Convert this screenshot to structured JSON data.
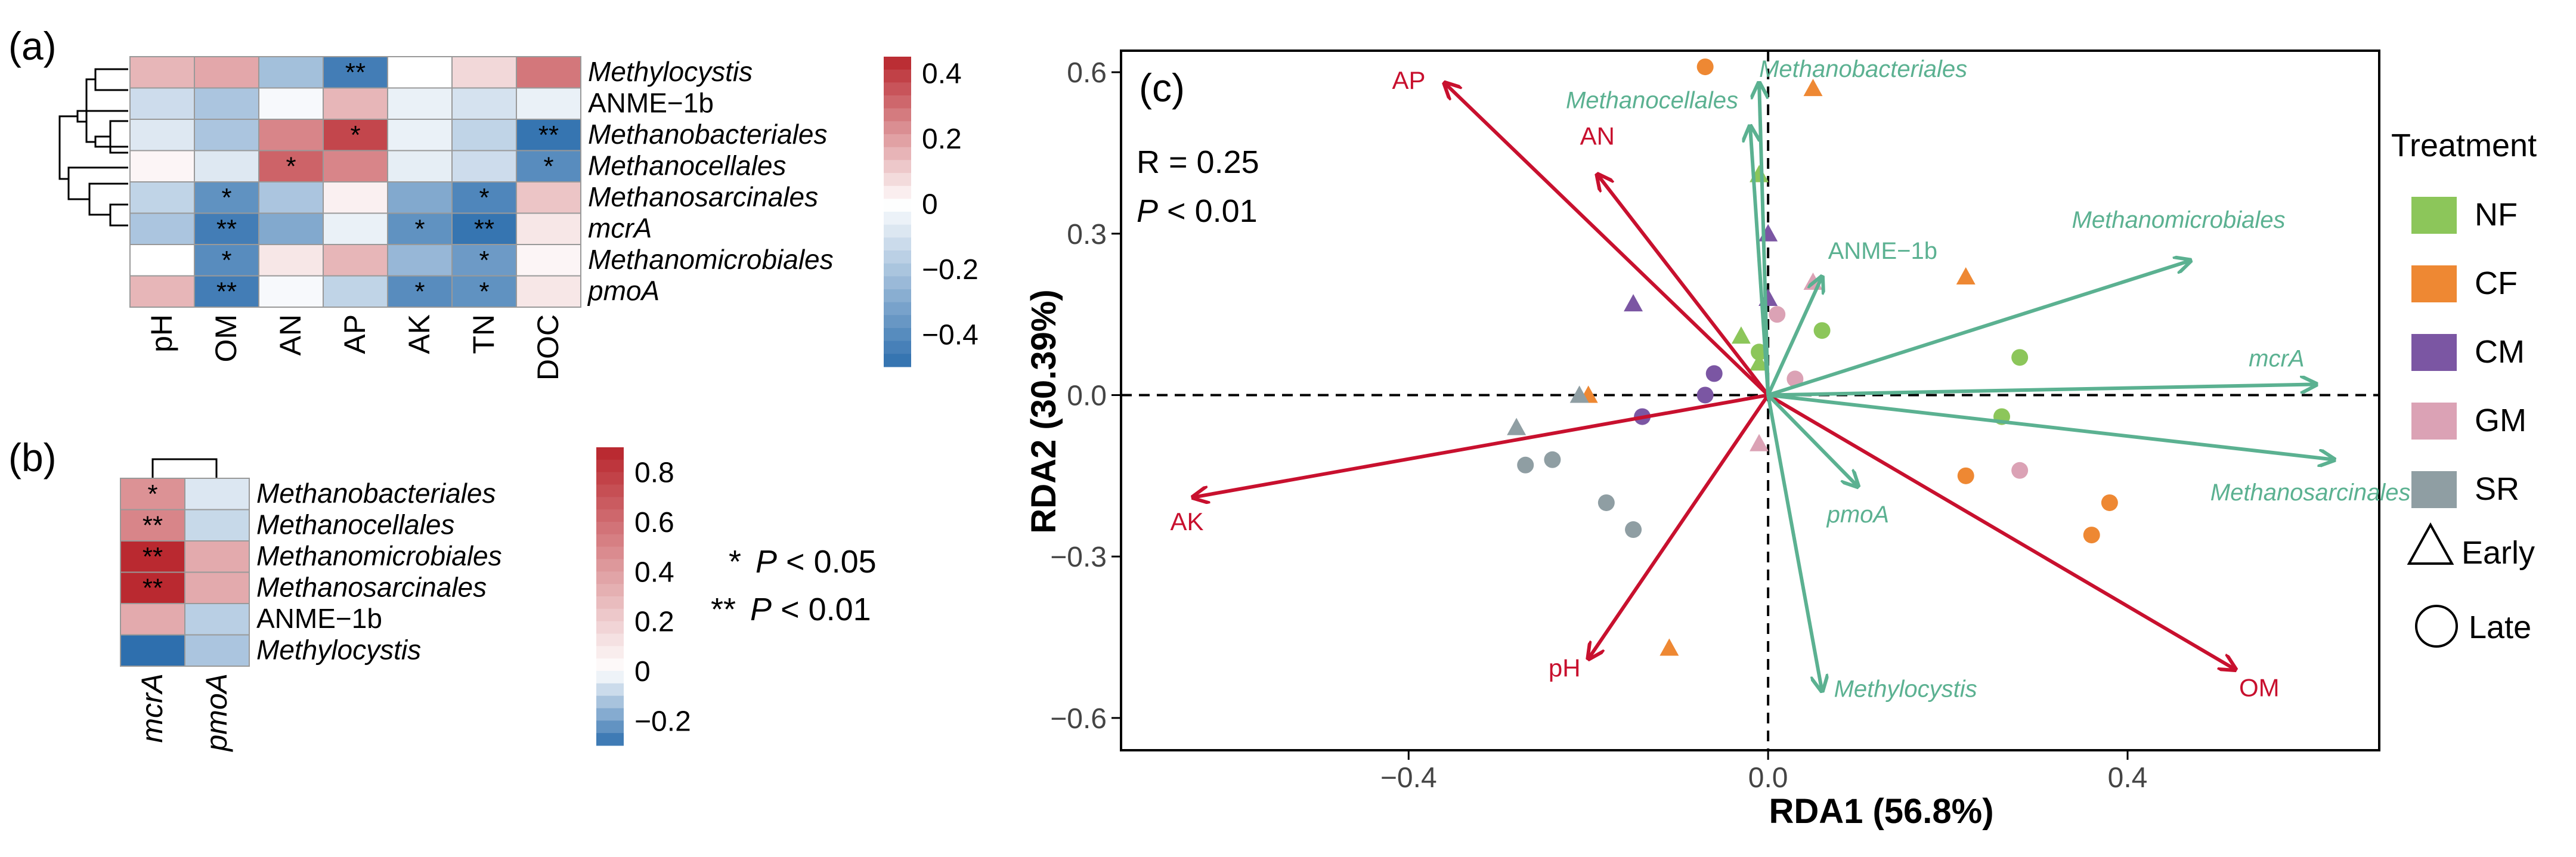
{
  "panels": {
    "a": "(a)",
    "b": "(b)",
    "c": "(c)"
  },
  "colors": {
    "red": "#C8102E",
    "green": "#5BB191",
    "heat_hi": "#B8242B",
    "heat_lo": "#2E6FAE"
  },
  "significance_legend": [
    {
      "mark": "*",
      "p": "P",
      "text": " < 0.05"
    },
    {
      "mark": "**",
      "p": "P",
      "text": " < 0.01"
    }
  ],
  "chart_data": [
    {
      "id": "heatmap_a",
      "type": "heatmap",
      "title": "(a)",
      "rows": [
        "Methylocystis",
        "ANME−1b",
        "Methanobacteriales",
        "Methanocellales",
        "Methanosarcinales",
        "mcrA",
        "Methanomicrobiales",
        "pmoA"
      ],
      "italic_rows": [
        true,
        false,
        true,
        true,
        true,
        true,
        true,
        true
      ],
      "cols": [
        "pH",
        "OM",
        "AN",
        "AP",
        "AK",
        "TN",
        "DOC"
      ],
      "values": [
        [
          0.15,
          0.18,
          -0.22,
          -0.45,
          0.0,
          0.08,
          0.28
        ],
        [
          -0.12,
          -0.2,
          -0.02,
          0.15,
          -0.05,
          -0.1,
          -0.05
        ],
        [
          -0.08,
          -0.2,
          0.25,
          0.38,
          -0.05,
          -0.15,
          -0.48
        ],
        [
          0.02,
          -0.08,
          0.32,
          0.25,
          -0.06,
          -0.12,
          -0.4
        ],
        [
          -0.15,
          -0.38,
          -0.2,
          0.03,
          -0.3,
          -0.42,
          0.12
        ],
        [
          -0.2,
          -0.45,
          -0.3,
          -0.05,
          -0.38,
          -0.48,
          0.05
        ],
        [
          0.0,
          -0.4,
          0.05,
          0.15,
          -0.25,
          -0.35,
          0.02
        ],
        [
          0.15,
          -0.45,
          -0.02,
          -0.15,
          -0.4,
          -0.38,
          0.05
        ]
      ],
      "stars": [
        [
          "",
          "",
          "",
          "**",
          "",
          "",
          ""
        ],
        [
          "",
          "",
          "",
          "",
          "",
          "",
          ""
        ],
        [
          "",
          "",
          "",
          "*",
          "",
          "",
          "**"
        ],
        [
          "",
          "",
          "*",
          "",
          "",
          "",
          "*"
        ],
        [
          "",
          "*",
          "",
          "",
          "",
          "*",
          ""
        ],
        [
          "",
          "**",
          "",
          "",
          "*",
          "**",
          ""
        ],
        [
          "",
          "*",
          "",
          "",
          "",
          "*",
          ""
        ],
        [
          "",
          "**",
          "",
          "",
          "*",
          "*",
          ""
        ]
      ],
      "colorbar": {
        "range": [
          -0.5,
          0.45
        ],
        "ticks": [
          0.4,
          0.2,
          0,
          -0.2,
          -0.4
        ],
        "tick_labels": [
          "0.4",
          "0.2",
          "0",
          "−0.2",
          "−0.4"
        ]
      }
    },
    {
      "id": "heatmap_b",
      "type": "heatmap",
      "title": "(b)",
      "rows": [
        "Methanobacteriales",
        "Methanocellales",
        "Methanomicrobiales",
        "Methanosarcinales",
        "ANME−1b",
        "Methylocystis"
      ],
      "italic_rows": [
        true,
        true,
        true,
        true,
        false,
        true
      ],
      "cols": [
        "mcrA",
        "pmoA"
      ],
      "values": [
        [
          0.45,
          -0.05
        ],
        [
          0.5,
          -0.08
        ],
        [
          0.88,
          0.35
        ],
        [
          0.88,
          0.35
        ],
        [
          0.35,
          -0.1
        ],
        [
          -0.3,
          -0.12
        ]
      ],
      "stars": [
        [
          "*",
          ""
        ],
        [
          "**",
          ""
        ],
        [
          "**",
          ""
        ],
        [
          "**",
          ""
        ],
        [
          "",
          ""
        ],
        [
          "",
          ""
        ]
      ],
      "colorbar": {
        "range": [
          -0.3,
          0.9
        ],
        "ticks": [
          0.8,
          0.6,
          0.4,
          0.2,
          0,
          -0.2
        ],
        "tick_labels": [
          "0.8",
          "0.6",
          "0.4",
          "0.2",
          "0",
          "−0.2"
        ]
      }
    },
    {
      "id": "rda_c",
      "type": "scatter",
      "title": "(c)",
      "xlabel": "RDA1 (56.8%)",
      "ylabel": "RDA2 (30.39%)",
      "xlim": [
        -0.72,
        0.68
      ],
      "ylim": [
        -0.66,
        0.64
      ],
      "xticks": [
        -0.4,
        0.0,
        0.4
      ],
      "xtick_labels": [
        "−0.4",
        "0.0",
        "0.4"
      ],
      "yticks": [
        0.6,
        0.3,
        0.0,
        -0.3,
        -0.6
      ],
      "ytick_labels": [
        "0.6",
        "0.3",
        "0.0",
        "−0.3",
        "−0.6"
      ],
      "stats": {
        "r_text": "R = 0.25",
        "p_prefix": "P",
        "p_text": " < 0.01"
      },
      "env_arrows": [
        {
          "label": "AP",
          "x": -0.36,
          "y": 0.58
        },
        {
          "label": "AN",
          "x": -0.19,
          "y": 0.41
        },
        {
          "label": "AK",
          "x": -0.64,
          "y": -0.19
        },
        {
          "label": "pH",
          "x": -0.2,
          "y": -0.49
        },
        {
          "label": "OM",
          "x": 0.52,
          "y": -0.51
        }
      ],
      "species_arrows": [
        {
          "label": "Methanobacteriales",
          "x": -0.01,
          "y": 0.58
        },
        {
          "label": "Methanocellales",
          "x": -0.02,
          "y": 0.5
        },
        {
          "label": "ANME−1b",
          "x": 0.06,
          "y": 0.22
        },
        {
          "label": "Methanomicrobiales",
          "x": 0.47,
          "y": 0.25
        },
        {
          "label": "mcrA",
          "x": 0.61,
          "y": 0.02
        },
        {
          "label": "Methanosarcinales",
          "x": 0.63,
          "y": -0.12
        },
        {
          "label": "pmoA",
          "x": 0.1,
          "y": -0.17
        },
        {
          "label": "Methylocystis",
          "x": 0.06,
          "y": -0.55
        }
      ],
      "series": [
        {
          "name": "NF",
          "color": "#8CC65A",
          "early": [
            [
              -0.01,
              0.41
            ],
            [
              -0.03,
              0.11
            ],
            [
              -0.01,
              0.06
            ]
          ],
          "late": [
            [
              0.06,
              0.12
            ],
            [
              0.26,
              -0.04
            ],
            [
              0.28,
              0.07
            ],
            [
              -0.01,
              0.08
            ]
          ]
        },
        {
          "name": "CF",
          "color": "#EE8833",
          "early": [
            [
              0.05,
              0.57
            ],
            [
              0.22,
              0.22
            ],
            [
              -0.2,
              0.0
            ],
            [
              -0.11,
              -0.47
            ]
          ],
          "late": [
            [
              -0.07,
              0.61
            ],
            [
              0.22,
              -0.15
            ],
            [
              0.38,
              -0.2
            ],
            [
              0.36,
              -0.26
            ]
          ]
        },
        {
          "name": "CM",
          "color": "#7B56A3",
          "early": [
            [
              -0.0,
              0.3
            ],
            [
              -0.15,
              0.17
            ],
            [
              -0.0,
              0.18
            ]
          ],
          "late": [
            [
              -0.06,
              0.04
            ],
            [
              -0.07,
              -0.0
            ],
            [
              -0.14,
              -0.04
            ]
          ]
        },
        {
          "name": "GM",
          "color": "#DBA2B5",
          "early": [
            [
              0.05,
              0.21
            ],
            [
              -0.01,
              -0.09
            ]
          ],
          "late": [
            [
              0.01,
              0.15
            ],
            [
              0.03,
              0.03
            ],
            [
              0.28,
              -0.14
            ]
          ]
        },
        {
          "name": "SR",
          "color": "#8F9EA3",
          "early": [
            [
              -0.21,
              0.0
            ],
            [
              -0.28,
              -0.06
            ]
          ],
          "late": [
            [
              -0.27,
              -0.13
            ],
            [
              -0.24,
              -0.12
            ],
            [
              -0.18,
              -0.2
            ],
            [
              -0.15,
              -0.25
            ]
          ]
        }
      ],
      "legend": {
        "title": "Treatment",
        "early_label": "Early",
        "late_label": "Late"
      }
    }
  ]
}
